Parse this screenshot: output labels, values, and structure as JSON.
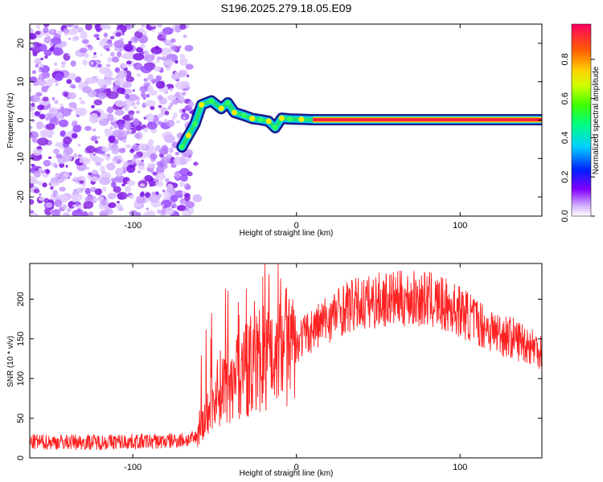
{
  "title": "S196.2025.279.18.05.E09",
  "chart_data": [
    {
      "type": "heatmap",
      "title": "S196.2025.279.18.05.E09",
      "xlabel": "Height of straight line (km)",
      "ylabel": "Frequency (Hz)",
      "xlim": [
        -163,
        150
      ],
      "ylim": [
        -25,
        25
      ],
      "xticks": [
        -100,
        0,
        100
      ],
      "yticks": [
        -20,
        -10,
        0,
        10,
        20
      ],
      "colorbar": {
        "label": "Normalized spectral amplitude",
        "range": [
          0.0,
          0.98
        ],
        "ticks": [
          "0.0",
          "0.2",
          "0.4",
          "0.6",
          "0.8"
        ]
      },
      "noise_region": {
        "x_from": -163,
        "x_to": -65,
        "f_from": -25,
        "f_to": 25
      },
      "tone_track": [
        {
          "x": -70,
          "f": -7
        },
        {
          "x": -66,
          "f": -4
        },
        {
          "x": -62,
          "f": -1
        },
        {
          "x": -58,
          "f": 4
        },
        {
          "x": -52,
          "f": 5
        },
        {
          "x": -46,
          "f": 3
        },
        {
          "x": -42,
          "f": 4.5
        },
        {
          "x": -38,
          "f": 2
        },
        {
          "x": -32,
          "f": 1.2
        },
        {
          "x": -27,
          "f": 0.4
        },
        {
          "x": -22,
          "f": 0.1
        },
        {
          "x": -17,
          "f": -0.3
        },
        {
          "x": -13,
          "f": -2
        },
        {
          "x": -9,
          "f": 0.5
        },
        {
          "x": -4,
          "f": 0.3
        },
        {
          "x": 3,
          "f": 0.2
        },
        {
          "x": 10,
          "f": 0.1
        },
        {
          "x": 150,
          "f": 0.1
        }
      ]
    },
    {
      "type": "line",
      "xlabel": "Height of straight line (km)",
      "ylabel": "SNR (10 * v/v)",
      "xlim": [
        -163,
        150
      ],
      "ylim": [
        0,
        245
      ],
      "xticks": [
        -100,
        0,
        100
      ],
      "yticks": [
        0,
        50,
        100,
        150,
        200
      ],
      "color": "#ff2020",
      "trend": [
        {
          "x": -163,
          "y": 20
        },
        {
          "x": -120,
          "y": 20
        },
        {
          "x": -80,
          "y": 21
        },
        {
          "x": -62,
          "y": 24
        },
        {
          "x": -55,
          "y": 50
        },
        {
          "x": -50,
          "y": 80
        },
        {
          "x": -45,
          "y": 92
        },
        {
          "x": -38,
          "y": 98
        },
        {
          "x": -30,
          "y": 110
        },
        {
          "x": -20,
          "y": 128
        },
        {
          "x": -10,
          "y": 140
        },
        {
          "x": -3,
          "y": 130
        },
        {
          "x": 2,
          "y": 150
        },
        {
          "x": 15,
          "y": 170
        },
        {
          "x": 30,
          "y": 190
        },
        {
          "x": 55,
          "y": 200
        },
        {
          "x": 80,
          "y": 200
        },
        {
          "x": 100,
          "y": 185
        },
        {
          "x": 120,
          "y": 160
        },
        {
          "x": 140,
          "y": 145
        },
        {
          "x": 150,
          "y": 135
        }
      ]
    }
  ]
}
